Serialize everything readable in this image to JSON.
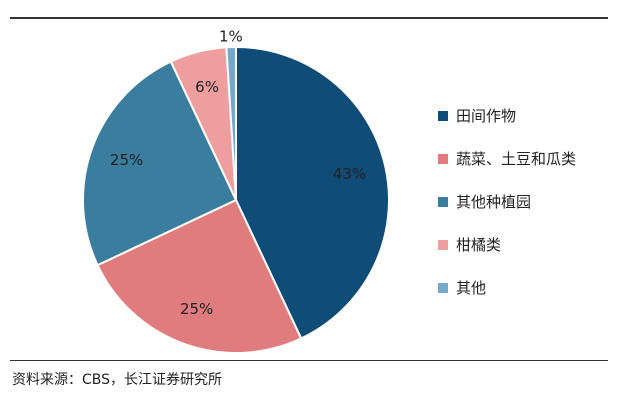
{
  "chart_data": {
    "type": "pie",
    "slices": [
      {
        "label": "田间作物",
        "value": 43,
        "value_label": "43%",
        "color": "#0f4d78"
      },
      {
        "label": "蔬菜、土豆和瓜类",
        "value": 25,
        "value_label": "25%",
        "color": "#e07c7e"
      },
      {
        "label": "其他种植园",
        "value": 25,
        "value_label": "25%",
        "color": "#3a7d9e"
      },
      {
        "label": "柑橘类",
        "value": 6,
        "value_label": "6%",
        "color": "#ee9e9e"
      },
      {
        "label": "其他",
        "value": 1,
        "value_label": "1%",
        "color": "#78a8c9"
      }
    ],
    "legend_position": "right"
  },
  "source": "资料来源：CBS，长江证券研究所"
}
